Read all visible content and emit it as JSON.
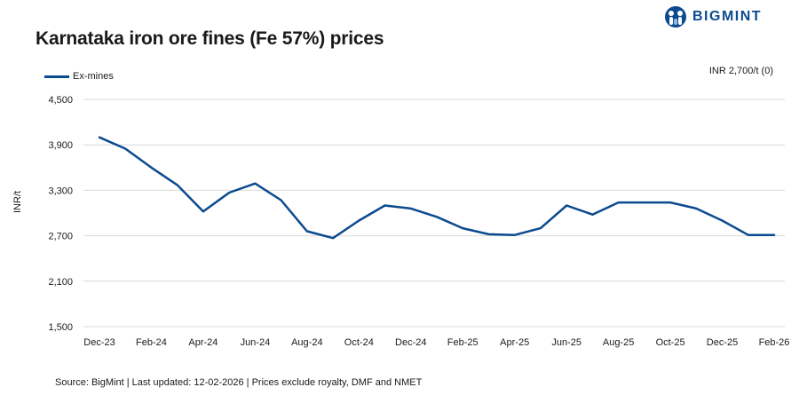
{
  "title": "Karnataka iron ore fines (Fe 57%) prices",
  "brand": {
    "name": "BIGMINT"
  },
  "note": "INR 2,700/t (0)",
  "source": "Source: BigMint | Last updated: 12-02-2026 | Prices exclude royalty, DMF and NMET",
  "colors": {
    "series": "#0b4a8f",
    "grid": "#d9d9d9"
  },
  "chart_data": {
    "type": "line",
    "ylabel": "INR/t",
    "ylim": [
      1500,
      4500
    ],
    "yticks": [
      "1,500",
      "2,100",
      "2,700",
      "3,300",
      "3,900",
      "4,500"
    ],
    "ytick_values": [
      1500,
      2100,
      2700,
      3300,
      3900,
      4500
    ],
    "xtick_labels": [
      "Dec-23",
      "Feb-24",
      "Apr-24",
      "Jun-24",
      "Aug-24",
      "Oct-24",
      "Dec-24",
      "Feb-25",
      "Apr-25",
      "Jun-25",
      "Aug-25",
      "Oct-25",
      "Dec-25",
      "Feb-26"
    ],
    "grid": true,
    "legend_position": "top-left",
    "series": [
      {
        "name": "Ex-mines",
        "values": [
          4000,
          3850,
          3600,
          3370,
          3020,
          3270,
          3390,
          3170,
          2760,
          2670,
          2900,
          3100,
          3060,
          2950,
          2800,
          2720,
          2710,
          2800,
          3100,
          2980,
          3140,
          3140,
          3140,
          3060,
          2900,
          2710,
          2710
        ]
      }
    ]
  }
}
